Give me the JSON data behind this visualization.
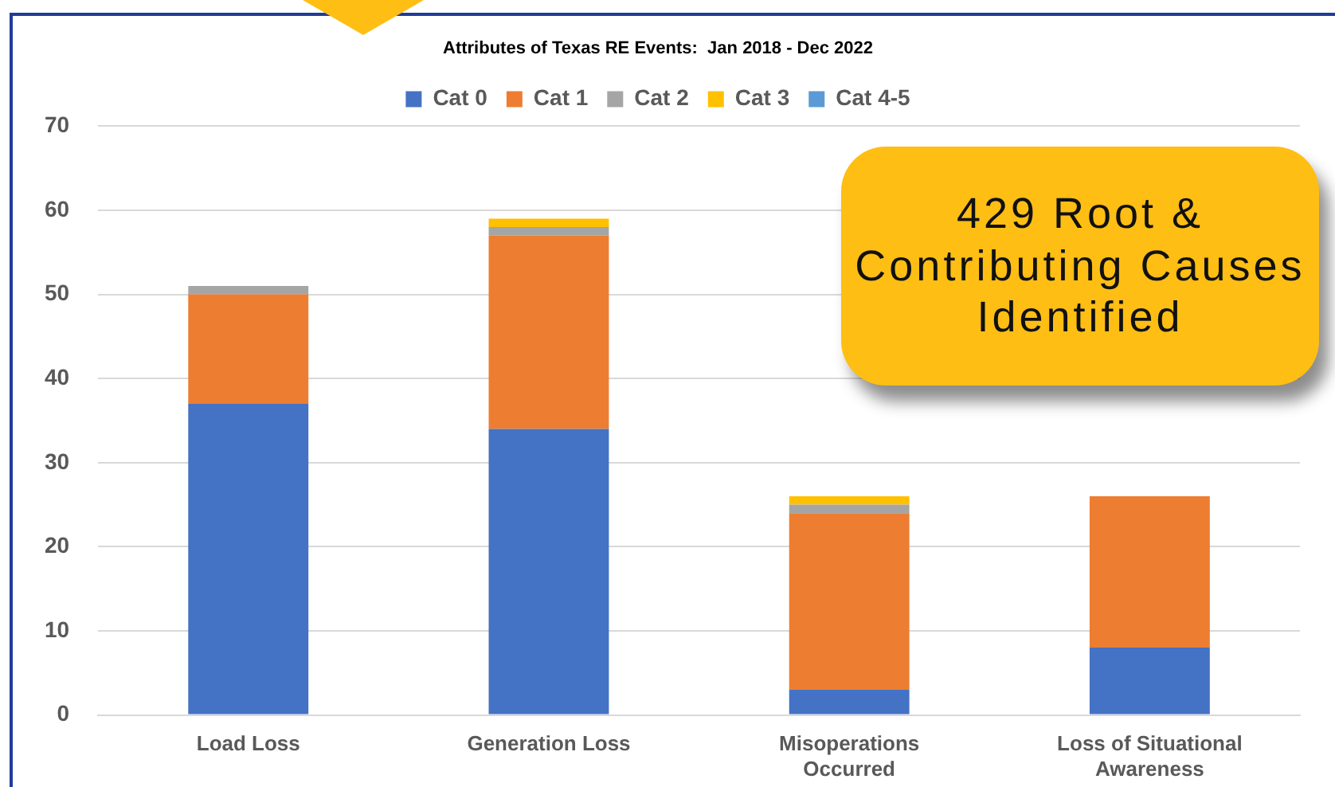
{
  "chart_data": {
    "type": "bar",
    "stacked": true,
    "title": "Attributes of Texas RE Events:  Jan 2018 - Dec 2022",
    "categories": [
      "Load Loss",
      "Generation Loss",
      "Misoperations Occurred",
      "Loss of Situational Awareness"
    ],
    "series": [
      {
        "name": "Cat 0",
        "color": "#4472c4",
        "values": [
          37,
          34,
          3,
          8
        ]
      },
      {
        "name": "Cat 1",
        "color": "#ed7d31",
        "values": [
          13,
          23,
          21,
          18
        ]
      },
      {
        "name": "Cat 2",
        "color": "#a5a5a5",
        "values": [
          1,
          1,
          1,
          0
        ]
      },
      {
        "name": "Cat 3",
        "color": "#ffc000",
        "values": [
          0,
          1,
          1,
          0
        ]
      },
      {
        "name": "Cat 4-5",
        "color": "#5b9bd5",
        "values": [
          0,
          0,
          0,
          0
        ]
      }
    ],
    "ylim": [
      0,
      70
    ],
    "yticks": [
      0,
      10,
      20,
      30,
      40,
      50,
      60,
      70
    ],
    "grid": "y",
    "legend": "top",
    "annotations": [
      "429 Root & Contributing Causes Identified"
    ]
  }
}
